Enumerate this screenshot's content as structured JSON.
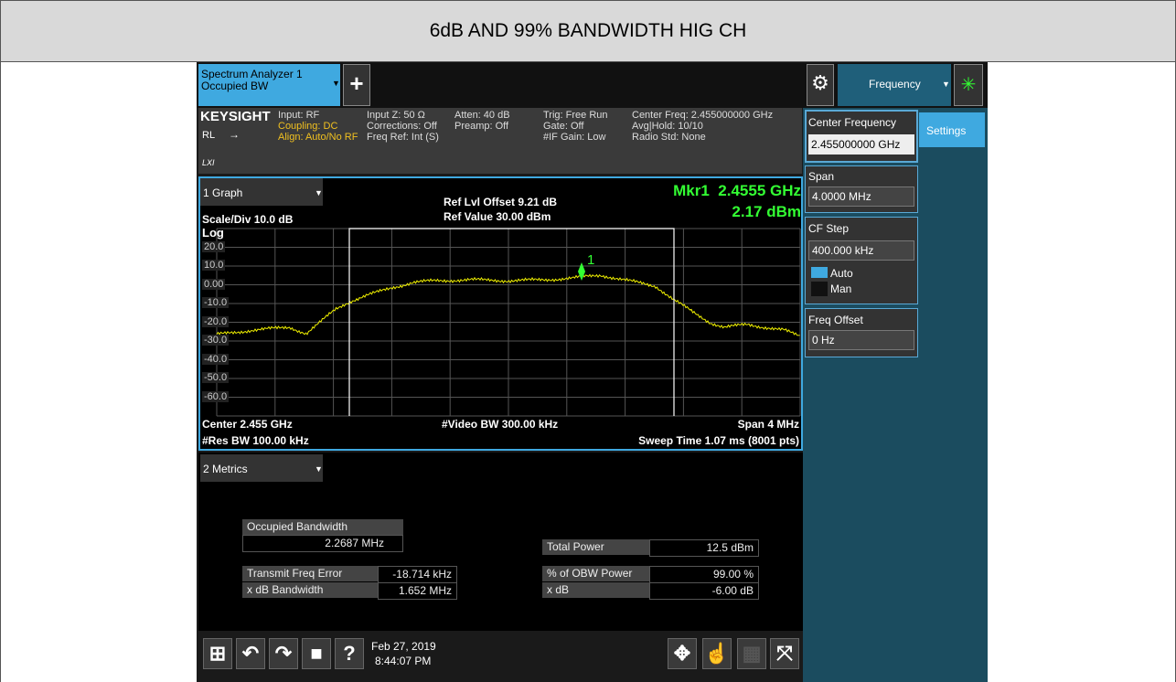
{
  "title": "6dB AND 99% BANDWIDTH HIG CH",
  "tab": {
    "line1": "Spectrum Analyzer 1",
    "line2": "Occupied BW"
  },
  "menu_tab": "Frequency",
  "info": {
    "brand": "KEYSIGHT",
    "rl": "RL",
    "col1": [
      "Input: RF",
      "Coupling: DC",
      "Align: Auto/No RF"
    ],
    "col2": [
      "Input Z: 50 Ω",
      "Corrections: Off",
      "Freq Ref: Int (S)"
    ],
    "col3": [
      "Atten: 40 dB",
      "Preamp: Off"
    ],
    "col4": [
      "Trig: Free Run",
      "Gate: Off",
      "#IF Gain: Low"
    ],
    "col5": [
      "Center Freq: 2.455000000 GHz",
      "Avg|Hold: 10/10",
      "Radio Std: None"
    ]
  },
  "graph": {
    "window": "1 Graph",
    "ref_offset": "Ref Lvl Offset 9.21 dB",
    "ref_value": "Ref Value 30.00 dBm",
    "scale": "Scale/Div 10.0 dB",
    "scale_type": "Log",
    "marker_freq": "Mkr1  2.4555 GHz",
    "marker_level": "2.17 dBm",
    "marker_label": "1",
    "y_labels": [
      "20.0",
      "10.0",
      "0.00",
      "-10.0",
      "-20.0",
      "-30.0",
      "-40.0",
      "-50.0",
      "-60.0"
    ],
    "center": "Center 2.455 GHz",
    "res_bw": "#Res BW 100.00 kHz",
    "video_bw": "#Video BW 300.00 kHz",
    "span": "Span 4 MHz",
    "sweep": "Sweep Time 1.07 ms (8001 pts)"
  },
  "metrics": {
    "window": "2 Metrics",
    "occupied_bw_label": "Occupied Bandwidth",
    "occupied_bw": "2.2687 MHz",
    "left_rows": [
      [
        "Transmit Freq Error",
        "-18.714 kHz"
      ],
      [
        "x dB Bandwidth",
        "1.652 MHz"
      ]
    ],
    "right_rows": [
      [
        "Total Power",
        "12.5 dBm"
      ],
      [
        "% of OBW Power",
        "99.00 %"
      ],
      [
        "x dB",
        "-6.00 dB"
      ]
    ]
  },
  "panel": {
    "settings": "Settings",
    "center_freq_label": "Center Frequency",
    "center_freq": "2.455000000 GHz",
    "span_label": "Span",
    "span": "4.0000 MHz",
    "cf_step_label": "CF Step",
    "cf_step": "400.000 kHz",
    "auto": "Auto",
    "man": "Man",
    "freq_offset_label": "Freq Offset",
    "freq_offset": "0 Hz"
  },
  "taskbar": {
    "date": "Feb 27, 2019",
    "time": "8:44:07 PM"
  }
}
